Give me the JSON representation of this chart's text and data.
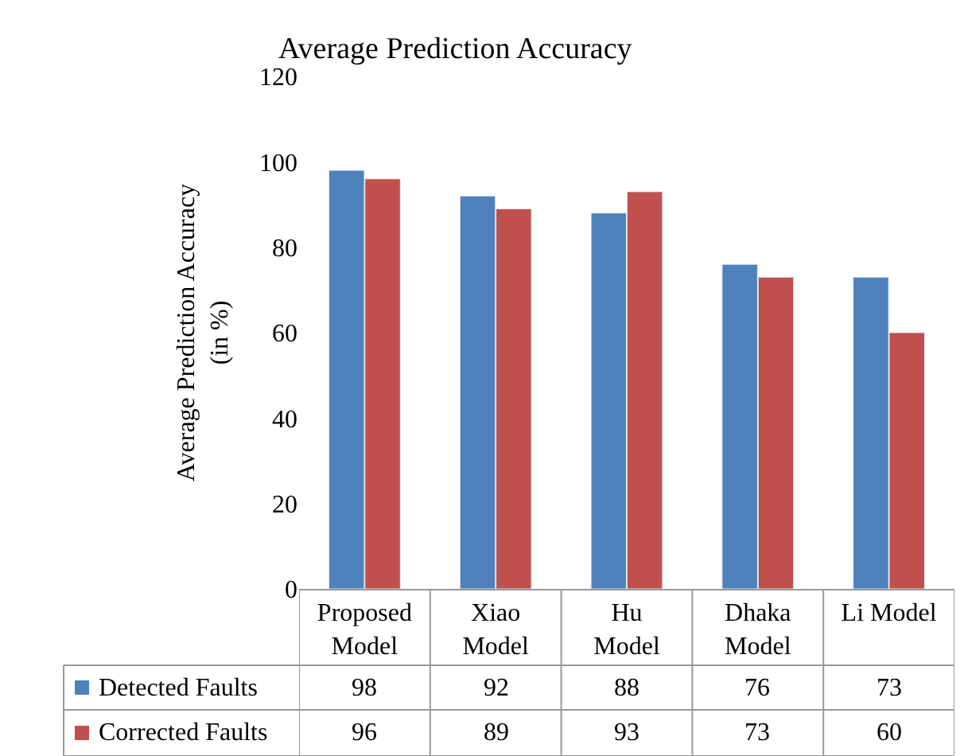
{
  "chart_data": {
    "type": "bar",
    "title": "Average Prediction Accuracy",
    "ylabel": "Average Prediction Accuracy\n(in %)",
    "categories": [
      "Proposed\nModel",
      "Xiao\nModel",
      "Hu\nModel",
      "Dhaka\nModel",
      "Li Model"
    ],
    "series": [
      {
        "name": "Detected Faults",
        "color": "#4f81bd",
        "values": [
          98,
          92,
          88,
          76,
          73
        ]
      },
      {
        "name": "Corrected Faults",
        "color": "#c0504d",
        "values": [
          96,
          89,
          93,
          73,
          60
        ]
      }
    ],
    "ylim": [
      0,
      120
    ],
    "yticks": [
      0,
      20,
      40,
      60,
      80,
      100,
      120
    ],
    "legend": "bottom left",
    "data_labels": true
  }
}
